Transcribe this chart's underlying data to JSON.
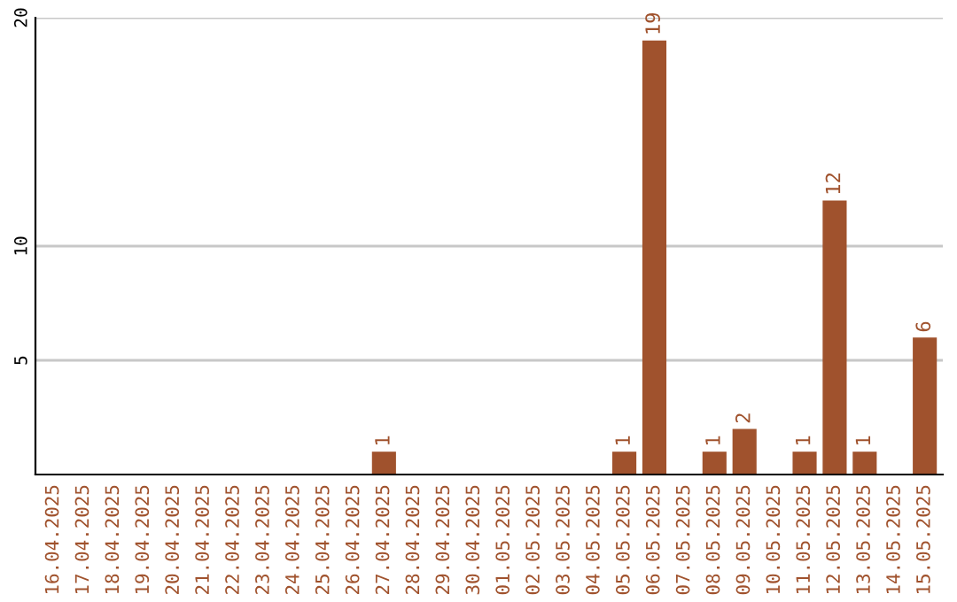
{
  "chart_data": {
    "type": "bar",
    "categories": [
      "16.04.2025",
      "17.04.2025",
      "18.04.2025",
      "19.04.2025",
      "20.04.2025",
      "21.04.2025",
      "22.04.2025",
      "23.04.2025",
      "24.04.2025",
      "25.04.2025",
      "26.04.2025",
      "27.04.2025",
      "28.04.2025",
      "29.04.2025",
      "30.04.2025",
      "01.05.2025",
      "02.05.2025",
      "03.05.2025",
      "04.05.2025",
      "05.05.2025",
      "06.05.2025",
      "07.05.2025",
      "08.05.2025",
      "09.05.2025",
      "10.05.2025",
      "11.05.2025",
      "12.05.2025",
      "13.05.2025",
      "14.05.2025",
      "15.05.2025"
    ],
    "values": [
      0,
      0,
      0,
      0,
      0,
      0,
      0,
      0,
      0,
      0,
      0,
      1,
      0,
      0,
      0,
      0,
      0,
      0,
      0,
      1,
      19,
      0,
      1,
      2,
      0,
      1,
      12,
      1,
      0,
      6
    ],
    "value_labels": [
      null,
      null,
      null,
      null,
      null,
      null,
      null,
      null,
      null,
      null,
      null,
      "1",
      null,
      null,
      null,
      null,
      null,
      null,
      null,
      "1",
      "19",
      null,
      "1",
      "2",
      null,
      "1",
      "12",
      "1",
      null,
      "6"
    ],
    "color": "#a0522d",
    "ylim": [
      0,
      20
    ],
    "yticks": [
      5,
      10,
      20
    ],
    "grid": "y"
  }
}
